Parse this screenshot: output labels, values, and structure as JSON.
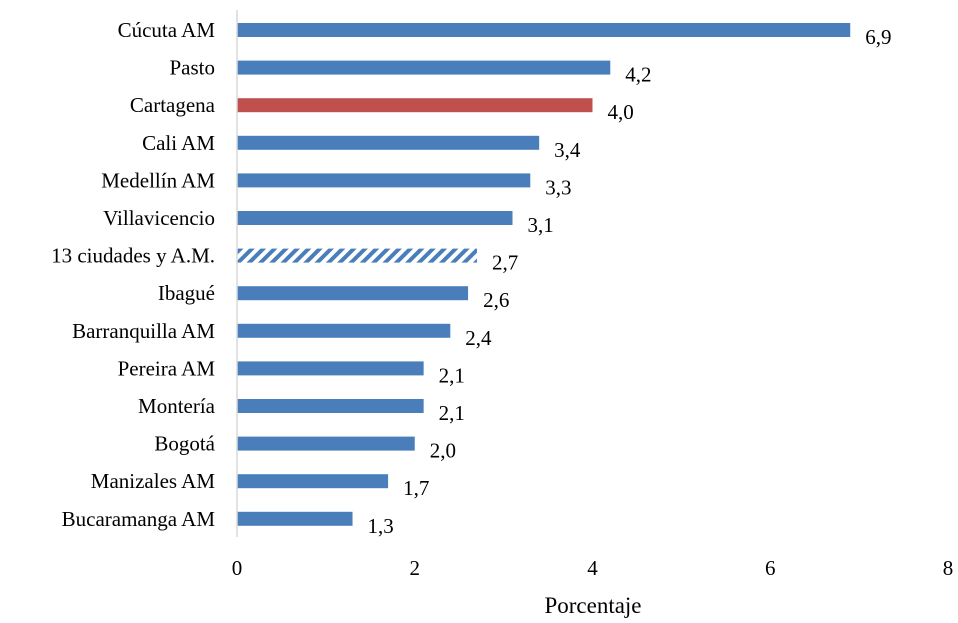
{
  "chart_data": {
    "type": "bar",
    "orientation": "horizontal",
    "categories": [
      "Cúcuta AM",
      "Pasto",
      "Cartagena",
      "Cali AM",
      "Medellín AM",
      "Villavicencio",
      "13 ciudades y A.M.",
      "Ibagué",
      "Barranquilla AM",
      "Pereira AM",
      "Montería",
      "Bogotá",
      "Manizales AM",
      "Bucaramanga AM"
    ],
    "values": [
      6.9,
      4.2,
      4.0,
      3.4,
      3.3,
      3.1,
      2.7,
      2.6,
      2.4,
      2.1,
      2.1,
      2.0,
      1.7,
      1.3
    ],
    "value_labels": [
      "6,9",
      "4,2",
      "4,0",
      "3,4",
      "3,3",
      "3,1",
      "2,7",
      "2,6",
      "2,4",
      "2,1",
      "2,1",
      "2,0",
      "1,7",
      "1,3"
    ],
    "bar_styles": [
      "solid",
      "solid",
      "highlight",
      "solid",
      "solid",
      "solid",
      "hatched",
      "solid",
      "solid",
      "solid",
      "solid",
      "solid",
      "solid",
      "solid"
    ],
    "title": "",
    "xlabel": "Porcentaje",
    "ylabel": "",
    "xlim": [
      0,
      8
    ],
    "xticks": [
      0,
      2,
      4,
      6,
      8
    ],
    "xtick_labels": [
      "0",
      "2",
      "4",
      "6",
      "8"
    ],
    "grid": false,
    "legend": "none",
    "colors": {
      "bar": "#4a7ebb",
      "highlight": "#c0504d",
      "hatch": "#4a7ebb",
      "axis": "#d9d9d9",
      "text": "#000000"
    }
  }
}
